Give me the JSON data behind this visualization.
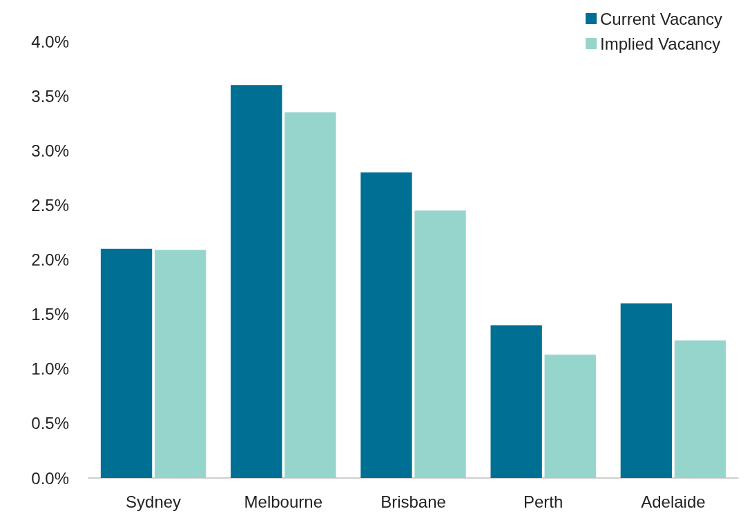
{
  "chart_data": {
    "type": "bar",
    "categories": [
      "Sydney",
      "Melbourne",
      "Brisbane",
      "Perth",
      "Adelaide"
    ],
    "series": [
      {
        "name": "Current Vacancy",
        "color": "#006f94",
        "values": [
          2.1,
          3.6,
          2.8,
          1.4,
          1.6
        ]
      },
      {
        "name": "Implied Vacancy",
        "color": "#96d5cc",
        "values": [
          2.09,
          3.35,
          2.45,
          1.13,
          1.26
        ]
      }
    ],
    "ylim": [
      0,
      4
    ],
    "yticks": [
      {
        "value": 0,
        "label": "0.0%"
      },
      {
        "value": 0.5,
        "label": "0.5%"
      },
      {
        "value": 1,
        "label": "1.0%"
      },
      {
        "value": 1.5,
        "label": "1.5%"
      },
      {
        "value": 2,
        "label": "2.0%"
      },
      {
        "value": 2.5,
        "label": "2.5%"
      },
      {
        "value": 3,
        "label": "3.0%"
      },
      {
        "value": 3.5,
        "label": "3.5%"
      },
      {
        "value": 4,
        "label": "4.0%"
      }
    ],
    "grid": false,
    "legend": "top right"
  }
}
